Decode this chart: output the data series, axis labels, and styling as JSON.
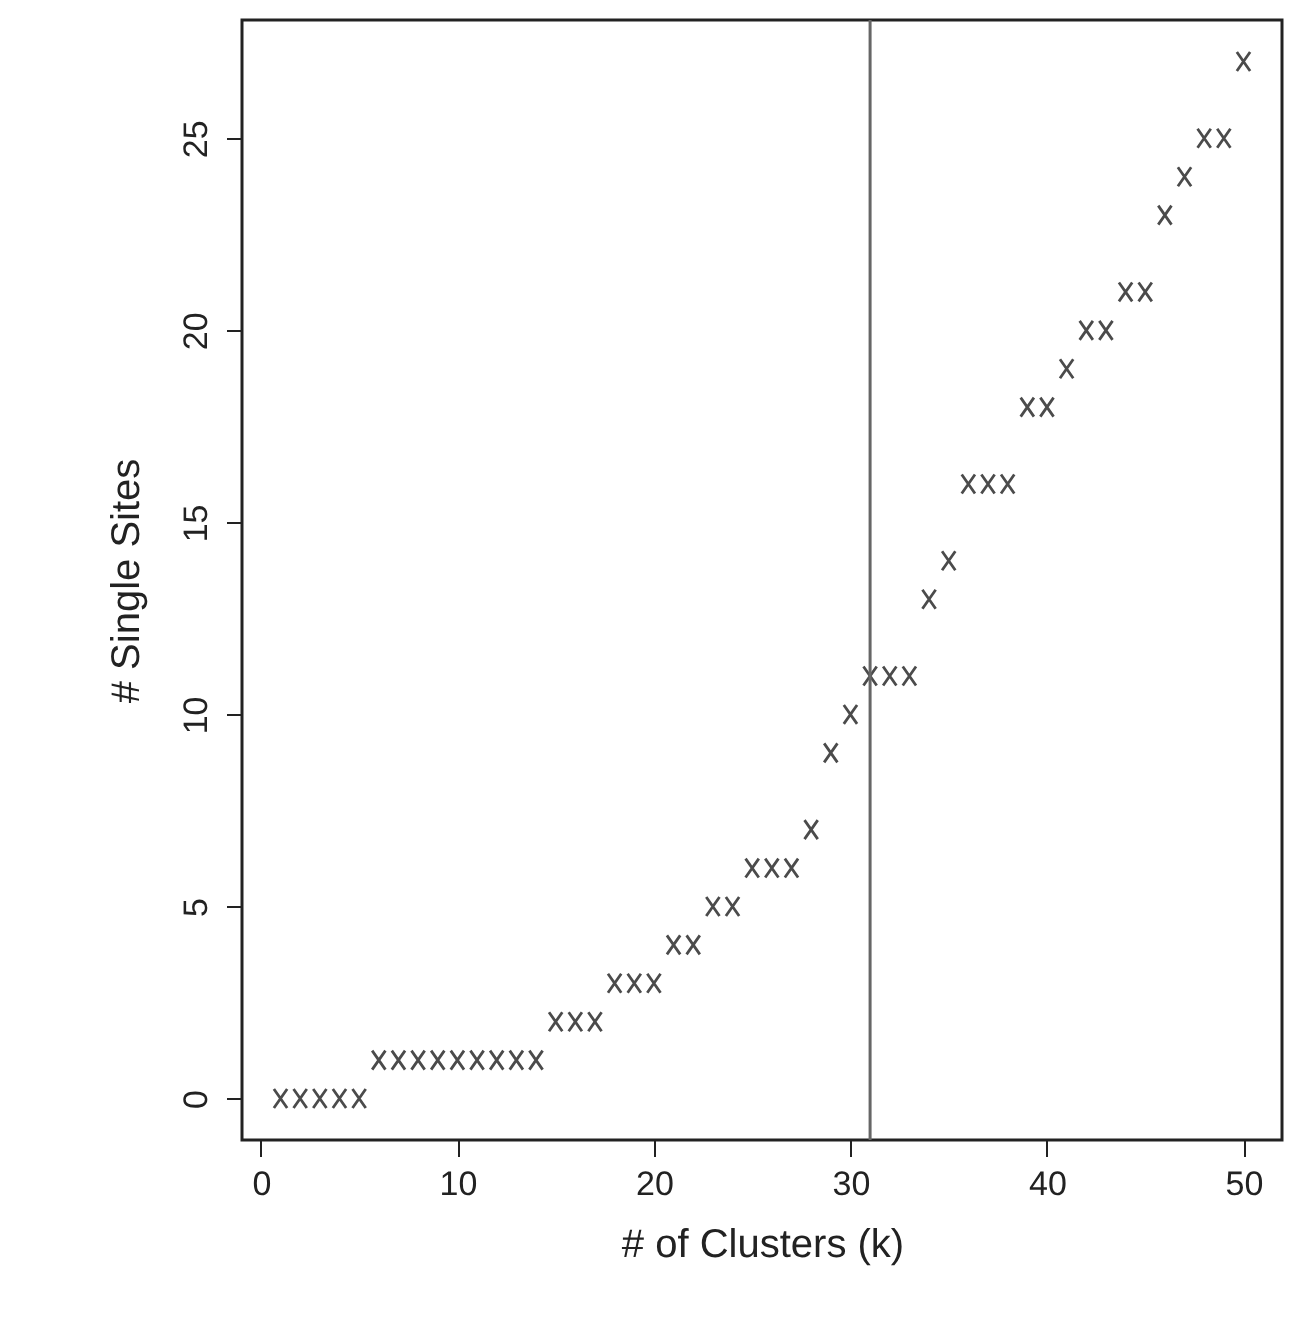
{
  "chart_data": {
    "type": "scatter",
    "xlabel": "# of Clusters (k)",
    "ylabel": "# Single Sites",
    "x": [
      1,
      2,
      3,
      4,
      5,
      6,
      7,
      8,
      9,
      10,
      11,
      12,
      13,
      14,
      15,
      16,
      17,
      18,
      19,
      20,
      21,
      22,
      23,
      24,
      25,
      26,
      27,
      28,
      29,
      30,
      31,
      32,
      33,
      34,
      35,
      36,
      37,
      38,
      39,
      40,
      41,
      42,
      43,
      44,
      45,
      46,
      47,
      48,
      49,
      50
    ],
    "series": [
      {
        "color": "#000000",
        "values": [
          0,
          0,
          0,
          0,
          0,
          1,
          1,
          1,
          1,
          1,
          1,
          1,
          1,
          1,
          2,
          2,
          2,
          3,
          3,
          3,
          4,
          4,
          5,
          5,
          6,
          6,
          6,
          7,
          9,
          10,
          11,
          11,
          11,
          13,
          14,
          16,
          16,
          16,
          18,
          18,
          19,
          20,
          20,
          21,
          21,
          23,
          24,
          25,
          25,
          27
        ]
      }
    ],
    "xlim": [
      -0.96,
      51.96
    ],
    "ylim": [
      -1.08,
      28.08
    ],
    "xticks": [
      0,
      10,
      20,
      30,
      40,
      50
    ],
    "yticks": [
      0,
      5,
      10,
      15,
      20,
      25
    ],
    "ref_lines": [
      {
        "axis": "x",
        "value": 31,
        "color": "#666666"
      }
    ],
    "marker": "cross",
    "grid": false
  }
}
